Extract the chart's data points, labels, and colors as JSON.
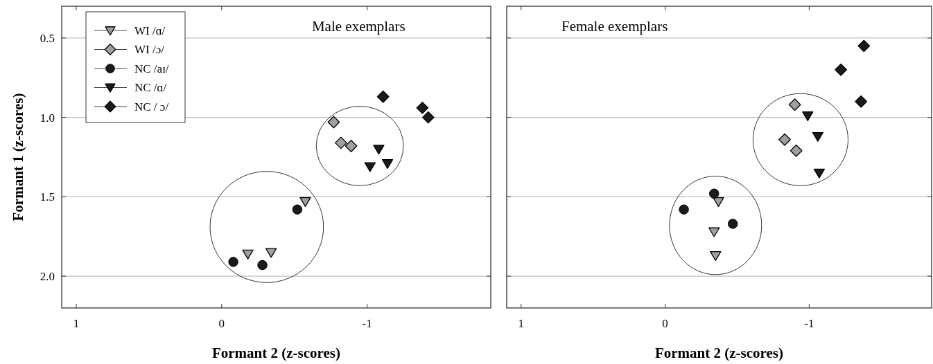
{
  "chart_data": [
    {
      "type": "scatter",
      "title": "Male exemplars",
      "xlabel": "Formant 2 (z-scores)",
      "ylabel": "Formant 1 (z-scores)",
      "xlim": [
        1.1,
        -1.85
      ],
      "xticks": [
        1,
        0,
        -1
      ],
      "ylim": [
        2.2,
        0.3
      ],
      "yticks": [
        {
          "value": 0.5,
          "label": "0.5"
        },
        {
          "value": 1,
          "label": "1.0"
        },
        {
          "value": 1.5,
          "label": "1.5"
        },
        {
          "value": 2,
          "label": "2.0"
        }
      ],
      "grid": "y",
      "legend": "top left",
      "series": [
        {
          "name": "WI /ɑ/",
          "color": "#a0a0a0",
          "marker": "triangle",
          "x": [
            -0.575,
            -0.18,
            -0.34
          ],
          "values": [
            1.53,
            1.86,
            1.85
          ]
        },
        {
          "name": "WI /ɔ/",
          "color": "#a0a0a0",
          "marker": "diamond",
          "x": [
            -0.77,
            -0.82,
            -0.89
          ],
          "values": [
            1.03,
            1.16,
            1.18
          ]
        },
        {
          "name": "NC /aɪ/",
          "color": "#1a1a1a",
          "marker": "circle",
          "x": [
            -0.52,
            -0.08,
            -0.28
          ],
          "values": [
            1.58,
            1.91,
            1.93
          ]
        },
        {
          "name": "NC /ɑ/",
          "color": "#1a1a1a",
          "marker": "triangle",
          "x": [
            -1.08,
            -1.02,
            -1.14
          ],
          "values": [
            1.2,
            1.31,
            1.29
          ]
        },
        {
          "name": "NC / ɔ/",
          "color": "#1a1a1a",
          "marker": "diamond",
          "x": [
            -1.11,
            -1.38,
            -1.42
          ],
          "values": [
            0.87,
            0.94,
            1.0
          ]
        }
      ]
    },
    {
      "type": "scatter",
      "title": "Female exemplars",
      "xlabel": "Formant 2 (z-scores)",
      "xlim": [
        1.1,
        -1.85
      ],
      "xticks": [
        1,
        0,
        -1
      ],
      "ylim": [
        2.2,
        0.3
      ],
      "yticks": [
        {
          "value": 0.5,
          "label": null
        },
        {
          "value": 1,
          "label": null
        },
        {
          "value": 1.5,
          "label": null
        },
        {
          "value": 2,
          "label": null
        }
      ],
      "grid": "y",
      "tick_labels": "x",
      "series": [
        {
          "color": "#a0a0a0",
          "marker": "triangle",
          "x": [
            -0.37,
            -0.34,
            -0.35
          ],
          "values": [
            1.53,
            1.72,
            1.87
          ]
        },
        {
          "color": "#a0a0a0",
          "marker": "diamond",
          "x": [
            -0.9,
            -0.83,
            -0.91
          ],
          "values": [
            0.92,
            1.14,
            1.21
          ]
        },
        {
          "color": "#1a1a1a",
          "marker": "circle",
          "x": [
            -0.34,
            -0.13,
            -0.47
          ],
          "values": [
            1.48,
            1.58,
            1.67
          ]
        },
        {
          "color": "#1a1a1a",
          "marker": "triangle",
          "x": [
            -0.99,
            -1.06,
            -1.07
          ],
          "values": [
            0.99,
            1.12,
            1.35
          ]
        },
        {
          "color": "#1a1a1a",
          "marker": "diamond",
          "x": [
            -1.38,
            -1.22,
            -1.36
          ],
          "values": [
            0.55,
            0.7,
            0.9
          ]
        }
      ]
    }
  ]
}
